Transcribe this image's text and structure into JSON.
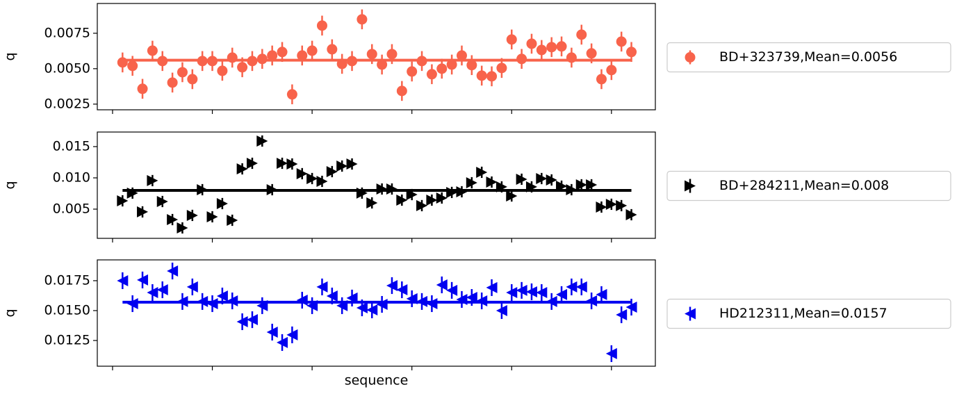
{
  "chart_data": [
    {
      "type": "errorbar",
      "ylabel": "q",
      "x": [
        1,
        2,
        3,
        4,
        5,
        6,
        7,
        8,
        9,
        10,
        11,
        12,
        13,
        14,
        15,
        16,
        17,
        18,
        19,
        20,
        21,
        22,
        23,
        24,
        25,
        26,
        27,
        28,
        29,
        30,
        31,
        32,
        33,
        34,
        35,
        36,
        37,
        38,
        39,
        40,
        41,
        42,
        43,
        44,
        45,
        46,
        47,
        48,
        49,
        50,
        51,
        52
      ],
      "series": [
        {
          "name": "BD+323739,Mean=0.0056",
          "color": "#f8634b",
          "marker": "circle",
          "yerr": 0.0007,
          "mean": 0.0056,
          "values": [
            0.00544,
            0.0052,
            0.00358,
            0.00627,
            0.00554,
            0.00402,
            0.00475,
            0.00426,
            0.00554,
            0.00554,
            0.00485,
            0.00578,
            0.0051,
            0.00554,
            0.00569,
            0.00593,
            0.00618,
            0.00319,
            0.00593,
            0.00627,
            0.00804,
            0.00637,
            0.00534,
            0.00554,
            0.00848,
            0.00603,
            0.00529,
            0.00603,
            0.00343,
            0.0048,
            0.00554,
            0.00461,
            0.005,
            0.00529,
            0.00593,
            0.00525,
            0.00451,
            0.00446,
            0.00505,
            0.00706,
            0.00569,
            0.00676,
            0.00632,
            0.00652,
            0.00657,
            0.00578,
            0.0074,
            0.00608,
            0.00426,
            0.0049,
            0.00691,
            0.00618
          ]
        }
      ],
      "xlim": [
        -1.53,
        54.4
      ],
      "xticks": [
        0,
        10,
        20,
        30,
        40,
        50
      ],
      "ylim": [
        0.0021,
        0.0096
      ],
      "yticks": [
        0.0025,
        {
          "value": 0.005,
          "label": "0.0050"
        },
        0.0075
      ]
    },
    {
      "type": "errorbar",
      "ylabel": "q",
      "x": [
        1,
        2,
        3,
        4,
        5,
        6,
        7,
        8,
        9,
        10,
        11,
        12,
        13,
        14,
        15,
        16,
        17,
        18,
        19,
        20,
        21,
        22,
        23,
        24,
        25,
        26,
        27,
        28,
        29,
        30,
        31,
        32,
        33,
        34,
        35,
        36,
        37,
        38,
        39,
        40,
        41,
        42,
        43,
        44,
        45,
        46,
        47,
        48,
        49,
        50,
        51,
        52
      ],
      "series": [
        {
          "name": "BD+284211,Mean=0.008",
          "color": "#000000",
          "marker": "triangle-right",
          "yerr": 0.0009,
          "mean": 0.008,
          "values": [
            0.00633,
            0.00756,
            0.00456,
            0.00956,
            0.00622,
            0.00333,
            0.002,
            0.004,
            0.00811,
            0.00378,
            0.00589,
            0.00322,
            0.01144,
            0.01233,
            0.01589,
            0.00811,
            0.01233,
            0.01222,
            0.01067,
            0.00989,
            0.00944,
            0.011,
            0.01189,
            0.01222,
            0.00756,
            0.006,
            0.00822,
            0.00822,
            0.00644,
            0.00733,
            0.00556,
            0.00644,
            0.00678,
            0.00767,
            0.00778,
            0.00922,
            0.01089,
            0.00933,
            0.00856,
            0.00711,
            0.00978,
            0.00856,
            0.00989,
            0.00967,
            0.00867,
            0.00811,
            0.00889,
            0.00889,
            0.00533,
            0.00578,
            0.00556,
            0.00411
          ]
        }
      ],
      "xlim": [
        -1.53,
        54.4
      ],
      "xticks": [
        0,
        10,
        20,
        30,
        40,
        50
      ],
      "ylim": [
        0.00033,
        0.01733
      ],
      "yticks": [
        0.005,
        {
          "value": 0.01,
          "label": "0.010"
        },
        0.015
      ]
    },
    {
      "type": "errorbar",
      "ylabel": "q",
      "xlabel": "sequence",
      "x": [
        1,
        2,
        3,
        4,
        5,
        6,
        7,
        8,
        9,
        10,
        11,
        12,
        13,
        14,
        15,
        16,
        17,
        18,
        19,
        20,
        21,
        22,
        23,
        24,
        25,
        26,
        27,
        28,
        29,
        30,
        31,
        32,
        33,
        34,
        35,
        36,
        37,
        38,
        39,
        40,
        41,
        42,
        43,
        44,
        45,
        46,
        47,
        48,
        49,
        50,
        51,
        52
      ],
      "series": [
        {
          "name": "HD212311,Mean=0.0157",
          "color": "#0000f0",
          "marker": "triangle-left",
          "yerr": 0.0007,
          "mean": 0.0157,
          "values": [
            0.0175,
            0.01558,
            0.01756,
            0.01651,
            0.01674,
            0.01831,
            0.01576,
            0.01698,
            0.01576,
            0.01558,
            0.01622,
            0.01581,
            0.01407,
            0.01424,
            0.01541,
            0.0132,
            0.01233,
            0.01297,
            0.01587,
            0.01541,
            0.01698,
            0.01622,
            0.01541,
            0.01605,
            0.01523,
            0.01506,
            0.01552,
            0.01709,
            0.01674,
            0.01599,
            0.01576,
            0.01558,
            0.01715,
            0.01669,
            0.01593,
            0.0161,
            0.01581,
            0.01692,
            0.015,
            0.01651,
            0.01669,
            0.01657,
            0.01651,
            0.01576,
            0.01634,
            0.01698,
            0.01698,
            0.01581,
            0.01634,
            0.0114,
            0.01465,
            0.01529
          ]
        }
      ],
      "xlim": [
        -1.53,
        54.4
      ],
      "xticks": [
        0,
        10,
        20,
        30,
        40,
        50
      ],
      "ylim": [
        0.01035,
        0.01924
      ],
      "yticks": [
        0.0125,
        {
          "value": 0.015,
          "label": "0.0150"
        },
        0.0175
      ]
    }
  ]
}
